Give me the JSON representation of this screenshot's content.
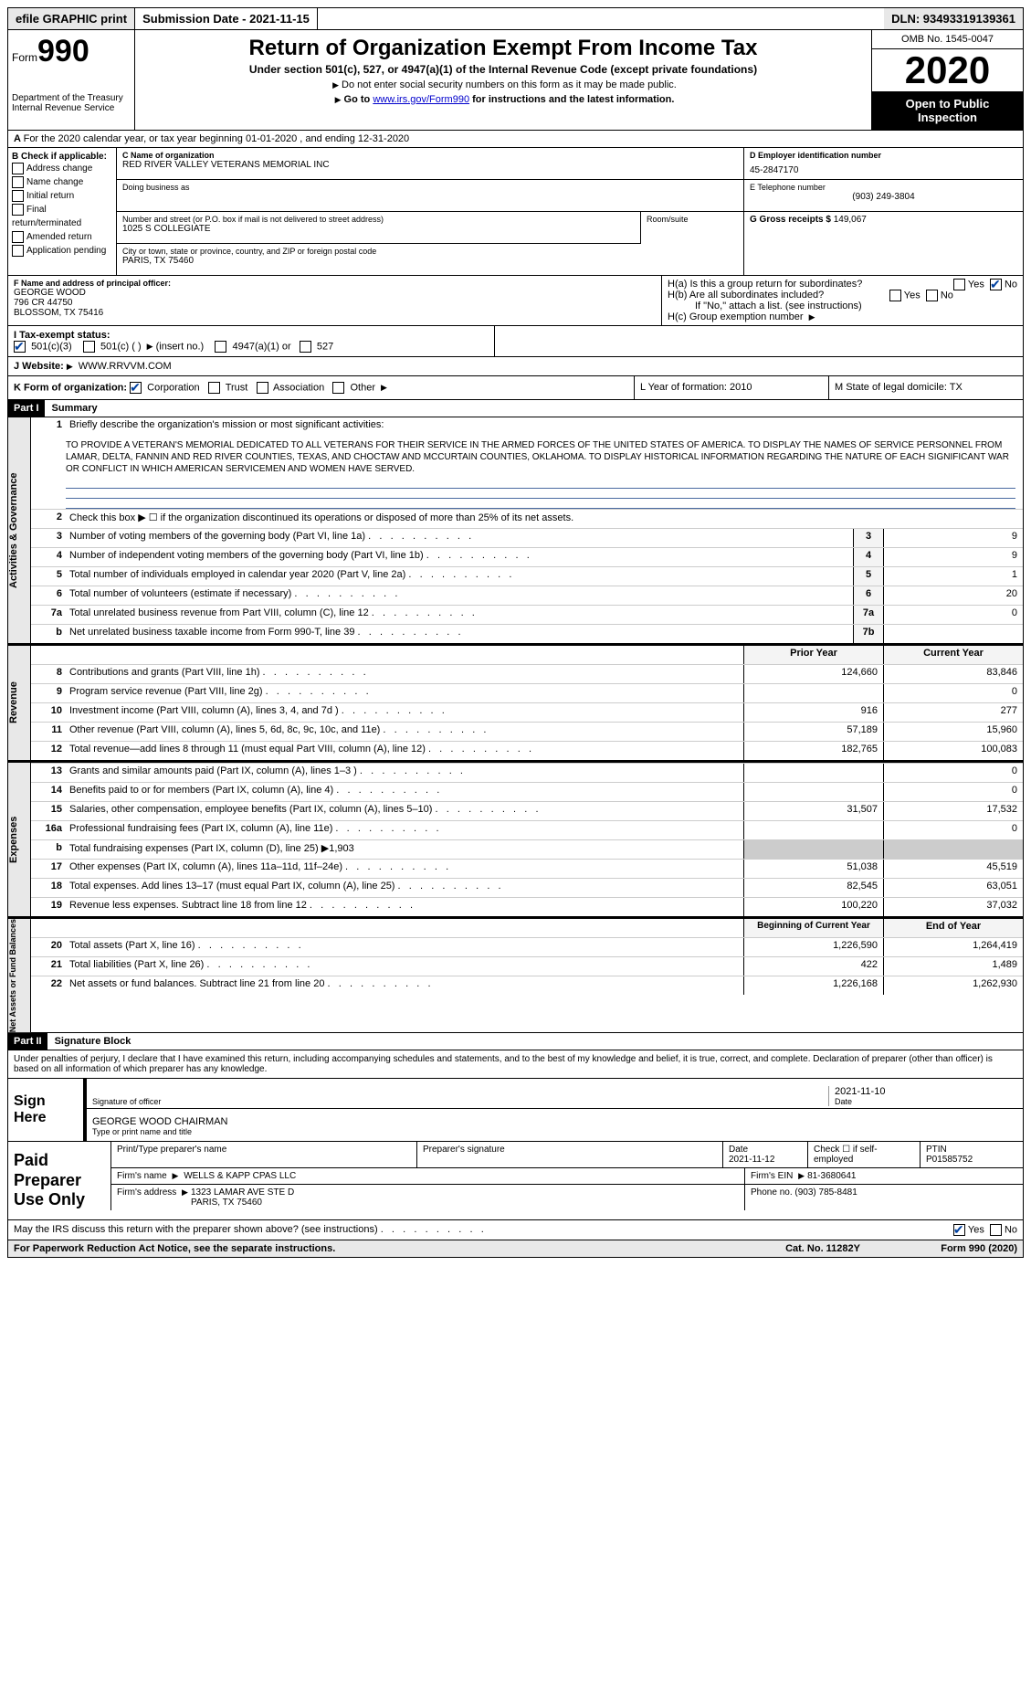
{
  "topbar": {
    "efile": "efile GRAPHIC print",
    "submission": "Submission Date - 2021-11-15",
    "dln": "DLN: 93493319139361"
  },
  "header": {
    "form_label": "Form",
    "form_num": "990",
    "dept": "Department of the Treasury\nInternal Revenue Service",
    "title": "Return of Organization Exempt From Income Tax",
    "subtitle": "Under section 501(c), 527, or 4947(a)(1) of the Internal Revenue Code (except private foundations)",
    "note1": "Do not enter social security numbers on this form as it may be made public.",
    "note2_pre": "Go to ",
    "note2_link": "www.irs.gov/Form990",
    "note2_post": " for instructions and the latest information.",
    "omb": "OMB No. 1545-0047",
    "year": "2020",
    "open": "Open to Public Inspection"
  },
  "row_a": "For the 2020 calendar year, or tax year beginning 01-01-2020   , and ending 12-31-2020",
  "col_b": {
    "title": "B Check if applicable:",
    "items": [
      "Address change",
      "Name change",
      "Initial return",
      "Final return/terminated",
      "Amended return",
      "Application pending"
    ]
  },
  "org": {
    "c_label": "C Name of organization",
    "name": "RED RIVER VALLEY VETERANS MEMORIAL INC",
    "dba_label": "Doing business as",
    "dba": "",
    "street_label": "Number and street (or P.O. box if mail is not delivered to street address)",
    "street": "1025 S COLLEGIATE",
    "room_label": "Room/suite",
    "room": "",
    "city_label": "City or town, state or province, country, and ZIP or foreign postal code",
    "city": "PARIS, TX  75460"
  },
  "col_d": {
    "d_label": "D Employer identification number",
    "ein": "45-2847170",
    "e_label": "E Telephone number",
    "phone": "(903) 249-3804",
    "g_label": "G Gross receipts $",
    "gross": "149,067"
  },
  "officer": {
    "f_label": "F  Name and address of principal officer:",
    "name": "GEORGE WOOD",
    "addr1": "796 CR 44750",
    "addr2": "BLOSSOM, TX  75416"
  },
  "h": {
    "ha": "H(a)  Is this a group return for subordinates?",
    "hb": "H(b)  Are all subordinates included?",
    "hb_note": "If \"No,\" attach a list. (see instructions)",
    "hc": "H(c)  Group exemption number"
  },
  "tax": {
    "i_label": "I  Tax-exempt status:",
    "opt1": "501(c)(3)",
    "opt2": "501(c) (  )",
    "opt2_post": "(insert no.)",
    "opt3": "4947(a)(1) or",
    "opt4": "527"
  },
  "website": {
    "j_label": "J Website:",
    "url": "WWW.RRVVM.COM"
  },
  "k": {
    "label": "K Form of organization:",
    "opts": [
      "Corporation",
      "Trust",
      "Association",
      "Other"
    ],
    "l": "L Year of formation: 2010",
    "m": "M State of legal domicile: TX"
  },
  "part1": {
    "num": "Part I",
    "title": "Summary"
  },
  "mission": {
    "label": "Briefly describe the organization's mission or most significant activities:",
    "text": "TO PROVIDE A VETERAN'S MEMORIAL DEDICATED TO ALL VETERANS FOR THEIR SERVICE IN THE ARMED FORCES OF THE UNITED STATES OF AMERICA. TO DISPLAY THE NAMES OF SERVICE PERSONNEL FROM LAMAR, DELTA, FANNIN AND RED RIVER COUNTIES, TEXAS, AND CHOCTAW AND MCCURTAIN COUNTIES, OKLAHOMA. TO DISPLAY HISTORICAL INFORMATION REGARDING THE NATURE OF EACH SIGNIFICANT WAR OR CONFLICT IN WHICH AMERICAN SERVICEMEN AND WOMEN HAVE SERVED."
  },
  "gov_lines": [
    {
      "n": "2",
      "t": "Check this box ▶ ☐  if the organization discontinued its operations or disposed of more than 25% of its net assets.",
      "box": "",
      "v": ""
    },
    {
      "n": "3",
      "t": "Number of voting members of the governing body (Part VI, line 1a)",
      "box": "3",
      "v": "9"
    },
    {
      "n": "4",
      "t": "Number of independent voting members of the governing body (Part VI, line 1b)",
      "box": "4",
      "v": "9"
    },
    {
      "n": "5",
      "t": "Total number of individuals employed in calendar year 2020 (Part V, line 2a)",
      "box": "5",
      "v": "1"
    },
    {
      "n": "6",
      "t": "Total number of volunteers (estimate if necessary)",
      "box": "6",
      "v": "20"
    },
    {
      "n": "7a",
      "t": "Total unrelated business revenue from Part VIII, column (C), line 12",
      "box": "7a",
      "v": "0"
    },
    {
      "n": "b",
      "t": "Net unrelated business taxable income from Form 990-T, line 39",
      "box": "7b",
      "v": ""
    }
  ],
  "rev_header": {
    "prior": "Prior Year",
    "current": "Current Year"
  },
  "rev_lines": [
    {
      "n": "8",
      "t": "Contributions and grants (Part VIII, line 1h)",
      "p": "124,660",
      "c": "83,846"
    },
    {
      "n": "9",
      "t": "Program service revenue (Part VIII, line 2g)",
      "p": "",
      "c": "0"
    },
    {
      "n": "10",
      "t": "Investment income (Part VIII, column (A), lines 3, 4, and 7d )",
      "p": "916",
      "c": "277"
    },
    {
      "n": "11",
      "t": "Other revenue (Part VIII, column (A), lines 5, 6d, 8c, 9c, 10c, and 11e)",
      "p": "57,189",
      "c": "15,960"
    },
    {
      "n": "12",
      "t": "Total revenue—add lines 8 through 11 (must equal Part VIII, column (A), line 12)",
      "p": "182,765",
      "c": "100,083"
    }
  ],
  "exp_lines": [
    {
      "n": "13",
      "t": "Grants and similar amounts paid (Part IX, column (A), lines 1–3 )",
      "p": "",
      "c": "0"
    },
    {
      "n": "14",
      "t": "Benefits paid to or for members (Part IX, column (A), line 4)",
      "p": "",
      "c": "0"
    },
    {
      "n": "15",
      "t": "Salaries, other compensation, employee benefits (Part IX, column (A), lines 5–10)",
      "p": "31,507",
      "c": "17,532"
    },
    {
      "n": "16a",
      "t": "Professional fundraising fees (Part IX, column (A), line 11e)",
      "p": "",
      "c": "0"
    },
    {
      "n": "b",
      "t": "Total fundraising expenses (Part IX, column (D), line 25) ▶1,903",
      "p": "—",
      "c": "—"
    },
    {
      "n": "17",
      "t": "Other expenses (Part IX, column (A), lines 11a–11d, 11f–24e)",
      "p": "51,038",
      "c": "45,519"
    },
    {
      "n": "18",
      "t": "Total expenses. Add lines 13–17 (must equal Part IX, column (A), line 25)",
      "p": "82,545",
      "c": "63,051"
    },
    {
      "n": "19",
      "t": "Revenue less expenses. Subtract line 18 from line 12",
      "p": "100,220",
      "c": "37,032"
    }
  ],
  "na_header": {
    "prior": "Beginning of Current Year",
    "current": "End of Year"
  },
  "na_lines": [
    {
      "n": "20",
      "t": "Total assets (Part X, line 16)",
      "p": "1,226,590",
      "c": "1,264,419"
    },
    {
      "n": "21",
      "t": "Total liabilities (Part X, line 26)",
      "p": "422",
      "c": "1,489"
    },
    {
      "n": "22",
      "t": "Net assets or fund balances. Subtract line 21 from line 20",
      "p": "1,226,168",
      "c": "1,262,930"
    }
  ],
  "vside": {
    "gov": "Activities & Governance",
    "rev": "Revenue",
    "exp": "Expenses",
    "na": "Net Assets or Fund Balances"
  },
  "part2": {
    "num": "Part II",
    "title": "Signature Block"
  },
  "sig_intro": "Under penalties of perjury, I declare that I have examined this return, including accompanying schedules and statements, and to the best of my knowledge and belief, it is true, correct, and complete. Declaration of preparer (other than officer) is based on all information of which preparer has any knowledge.",
  "sign": {
    "label": "Sign Here",
    "sig_of": "Signature of officer",
    "date": "2021-11-10",
    "date_label": "Date",
    "name": "GEORGE WOOD CHAIRMAN",
    "name_label": "Type or print name and title"
  },
  "prep": {
    "label": "Paid Preparer Use Only",
    "h1": "Print/Type preparer's name",
    "h2": "Preparer's signature",
    "h3": "Date",
    "date": "2021-11-12",
    "h4": "Check ☐ if self-employed",
    "h5": "PTIN",
    "ptin": "P01585752",
    "firm_label": "Firm's name",
    "firm": "WELLS & KAPP CPAS LLC",
    "ein_label": "Firm's EIN",
    "ein": "81-3680641",
    "addr_label": "Firm's address",
    "addr": "1323 LAMAR AVE STE D\nPARIS, TX  75460",
    "phone_label": "Phone no.",
    "phone": "(903) 785-8481"
  },
  "discuss": "May the IRS discuss this return with the preparer shown above? (see instructions)",
  "foot": {
    "l": "For Paperwork Reduction Act Notice, see the separate instructions.",
    "m": "Cat. No. 11282Y",
    "r": "Form 990 (2020)"
  }
}
